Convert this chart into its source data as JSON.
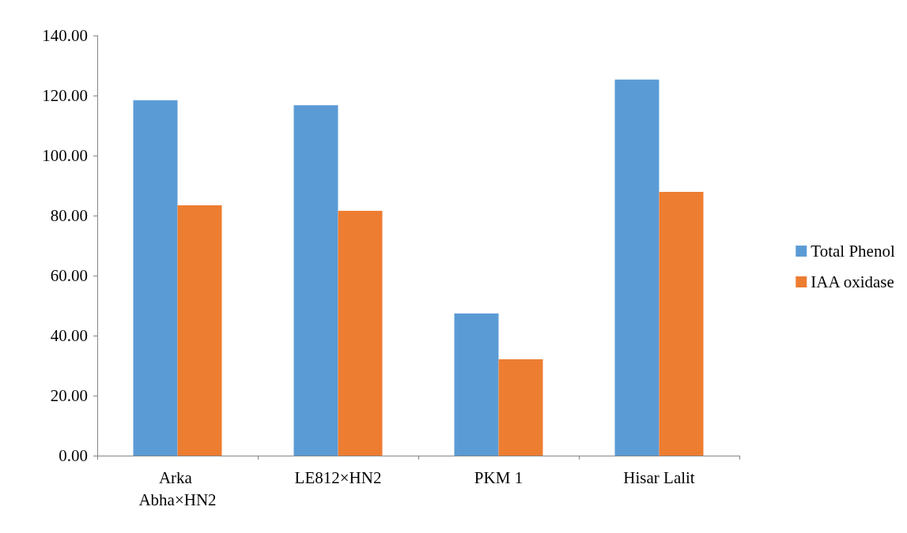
{
  "chart_data": {
    "type": "bar",
    "categories": [
      "Arka Abha×HN2",
      "LE812×HN2",
      "PKM 1",
      "Hisar Lalit"
    ],
    "series": [
      {
        "name": "Total Phenol",
        "color": "#5b9bd5",
        "values": [
          118.4,
          116.8,
          47.4,
          125.3
        ]
      },
      {
        "name": "IAA oxidase",
        "color": "#ed7d31",
        "values": [
          83.4,
          81.6,
          32.1,
          87.9
        ]
      }
    ],
    "ylim": [
      0,
      140
    ],
    "yticks": [
      {
        "value": 0,
        "label": "0.00"
      },
      {
        "value": 20,
        "label": "20.00"
      },
      {
        "value": 40,
        "label": "40.00"
      },
      {
        "value": 60,
        "label": "60.00"
      },
      {
        "value": 80,
        "label": "80.00"
      },
      {
        "value": 100,
        "label": "100.00"
      },
      {
        "value": 120,
        "label": "120.00"
      },
      {
        "value": 140,
        "label": "140.00"
      }
    ],
    "grid": false,
    "legend": "right"
  }
}
